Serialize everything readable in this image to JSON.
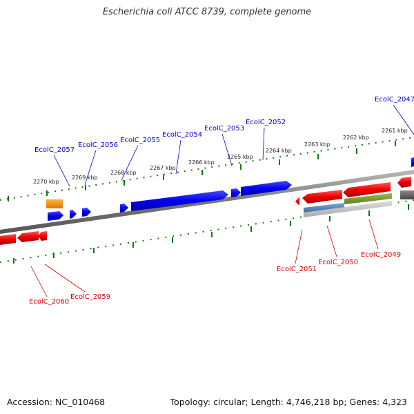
{
  "title": "Escherichia coli ATCC 8739, complete genome",
  "footer": {
    "accession": "Accession: NC_010468",
    "topology": "Topology: circular; Length: 4,746,218 bp; Genes: 4,323"
  },
  "kbp_labels": [
    "2270 kbp",
    "2269 kbp",
    "2268 kbp",
    "2267 kbp",
    "2266 kbp",
    "2265 kbp",
    "2264 kbp",
    "2263 kbp",
    "2262 kbp",
    "2261 kbp"
  ],
  "genes_top": [
    "EcolC_2057",
    "EcolC_2056",
    "EcolC_2055",
    "EcolC_2054",
    "EcolC_2053",
    "EcolC_2052",
    "EcolC_2047"
  ],
  "genes_bottom": [
    "EcolC_2060",
    "EcolC_2059",
    "EcolC_2051",
    "EcolC_2050",
    "EcolC_2049"
  ],
  "colors": {
    "forward": "#0000ee",
    "reverse": "#ee0000",
    "backbone": "#777777",
    "ticks": "#117711",
    "label_forward": "#0000cc",
    "label_reverse": "#cc0000"
  }
}
